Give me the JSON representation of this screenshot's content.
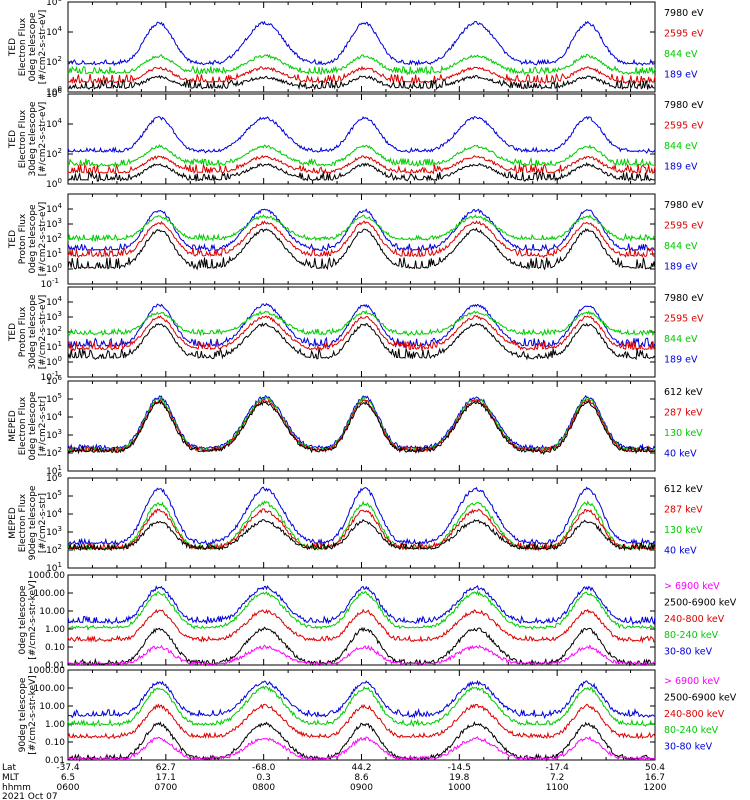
{
  "chart_data": [
    {
      "type": "line",
      "panel": "ted-electron-0deg",
      "ylabel": [
        "TED",
        "Electron Flux",
        "0deg telescope",
        "[#/cm2-s-str-eV]"
      ],
      "yscale": "log",
      "ylim": [
        1,
        1000000
      ],
      "yticks": [
        {
          "e": 0,
          "text": "10^0"
        },
        {
          "e": 2,
          "text": "10^2"
        },
        {
          "e": 4,
          "text": "10^4"
        },
        {
          "e": 6,
          "text": "10^6"
        }
      ],
      "series": [
        {
          "name": "7980 eV",
          "color": "#000000",
          "base": 0.2,
          "peak": 1.0,
          "noise": 0.6
        },
        {
          "name": "2595 eV",
          "color": "#dd0000",
          "base": 0.6,
          "peak": 1.6,
          "noise": 0.6
        },
        {
          "name": "844 eV",
          "color": "#00cc00",
          "base": 1.2,
          "peak": 2.4,
          "noise": 0.5
        },
        {
          "name": "189 eV",
          "color": "#0000dd",
          "base": 1.8,
          "peak": 4.6,
          "noise": 0.35
        }
      ]
    },
    {
      "type": "line",
      "panel": "ted-electron-30deg",
      "ylabel": [
        "TED",
        "Electron Flux",
        "30deg telescope",
        "[#/cm2-s-str-eV]"
      ],
      "yscale": "log",
      "ylim": [
        1,
        1000000
      ],
      "yticks": [
        {
          "e": 0,
          "text": "10^0"
        },
        {
          "e": 2,
          "text": "10^2"
        },
        {
          "e": 4,
          "text": "10^4"
        },
        {
          "e": 6,
          "text": "10^6"
        }
      ],
      "series": [
        {
          "name": "7980 eV",
          "color": "#000000",
          "base": 0.2,
          "peak": 1.3,
          "noise": 0.6
        },
        {
          "name": "2595 eV",
          "color": "#dd0000",
          "base": 0.7,
          "peak": 1.8,
          "noise": 0.6
        },
        {
          "name": "844 eV",
          "color": "#00cc00",
          "base": 1.2,
          "peak": 2.5,
          "noise": 0.5
        },
        {
          "name": "189 eV",
          "color": "#0000dd",
          "base": 2.1,
          "peak": 4.4,
          "noise": 0.3
        }
      ]
    },
    {
      "type": "line",
      "panel": "ted-proton-0deg",
      "ylabel": [
        "TED",
        "Proton Flux",
        "0deg telescope",
        "[#/cm2-s-str-eV]"
      ],
      "yscale": "log",
      "ylim": [
        0.1,
        100000
      ],
      "yticks": [
        {
          "e": -1,
          "text": "10^-1"
        },
        {
          "e": 0,
          "text": "10^0"
        },
        {
          "e": 1,
          "text": "10^1"
        },
        {
          "e": 2,
          "text": "10^2"
        },
        {
          "e": 3,
          "text": "10^3"
        },
        {
          "e": 4,
          "text": "10^4"
        }
      ],
      "series": [
        {
          "name": "7980 eV",
          "color": "#000000",
          "base": 0.0,
          "peak": 2.6,
          "noise": 0.8
        },
        {
          "name": "2595 eV",
          "color": "#dd0000",
          "base": 0.8,
          "peak": 3.1,
          "noise": 0.6
        },
        {
          "name": "844 eV",
          "color": "#00cc00",
          "base": 1.9,
          "peak": 3.5,
          "noise": 0.4
        },
        {
          "name": "189 eV",
          "color": "#0000dd",
          "base": 1.2,
          "peak": 3.9,
          "noise": 0.5
        }
      ]
    },
    {
      "type": "line",
      "panel": "ted-proton-30deg",
      "ylabel": [
        "TED",
        "Proton Flux",
        "30deg telescope",
        "[#/cm2-s-str-eV]"
      ],
      "yscale": "log",
      "ylim": [
        0.1,
        100000
      ],
      "yticks": [
        {
          "e": -1,
          "text": "10^-1"
        },
        {
          "e": 0,
          "text": "10^0"
        },
        {
          "e": 1,
          "text": "10^1"
        },
        {
          "e": 2,
          "text": "10^2"
        },
        {
          "e": 3,
          "text": "10^3"
        },
        {
          "e": 4,
          "text": "10^4"
        }
      ],
      "series": [
        {
          "name": "7980 eV",
          "color": "#000000",
          "base": 0.2,
          "peak": 2.5,
          "noise": 0.7
        },
        {
          "name": "2595 eV",
          "color": "#dd0000",
          "base": 0.8,
          "peak": 3.0,
          "noise": 0.6
        },
        {
          "name": "844 eV",
          "color": "#00cc00",
          "base": 1.8,
          "peak": 3.3,
          "noise": 0.4
        },
        {
          "name": "189 eV",
          "color": "#0000dd",
          "base": 1.0,
          "peak": 3.8,
          "noise": 0.6
        }
      ]
    },
    {
      "type": "line",
      "panel": "meped-electron-0deg",
      "ylabel": [
        "MEPED",
        "Electron Flux",
        "0deg telescope",
        "[#/cm2-s-str]"
      ],
      "yscale": "log",
      "ylim": [
        10,
        1000000
      ],
      "yticks": [
        {
          "e": 1,
          "text": "10^1"
        },
        {
          "e": 2,
          "text": "10^2"
        },
        {
          "e": 3,
          "text": "10^3"
        },
        {
          "e": 4,
          "text": "10^4"
        },
        {
          "e": 5,
          "text": "10^5"
        },
        {
          "e": 6,
          "text": "10^6"
        }
      ],
      "series": [
        {
          "name": "612 keV",
          "color": "#000000",
          "base": 2.0,
          "peak": 4.8,
          "noise": 0.35
        },
        {
          "name": "287 keV",
          "color": "#dd0000",
          "base": 2.05,
          "peak": 4.9,
          "noise": 0.3
        },
        {
          "name": "130 keV",
          "color": "#00cc00",
          "base": 2.1,
          "peak": 5.0,
          "noise": 0.2
        },
        {
          "name": "40 keV",
          "color": "#0000dd",
          "base": 2.2,
          "peak": 5.1,
          "noise": 0.25
        }
      ]
    },
    {
      "type": "line",
      "panel": "meped-electron-90deg",
      "ylabel": [
        "MEPED",
        "Electron Flux",
        "90deg telescope",
        "[#/cm2-s-str]"
      ],
      "yscale": "log",
      "ylim": [
        10,
        1000000
      ],
      "yticks": [
        {
          "e": 1,
          "text": "10^1"
        },
        {
          "e": 2,
          "text": "10^2"
        },
        {
          "e": 3,
          "text": "10^3"
        },
        {
          "e": 4,
          "text": "10^4"
        },
        {
          "e": 5,
          "text": "10^5"
        },
        {
          "e": 6,
          "text": "10^6"
        }
      ],
      "series": [
        {
          "name": "612 keV",
          "color": "#000000",
          "base": 2.0,
          "peak": 3.6,
          "noise": 0.4
        },
        {
          "name": "287 keV",
          "color": "#dd0000",
          "base": 2.0,
          "peak": 4.2,
          "noise": 0.4
        },
        {
          "name": "130 keV",
          "color": "#00cc00",
          "base": 2.0,
          "peak": 4.6,
          "noise": 0.3
        },
        {
          "name": "40 keV",
          "color": "#0000dd",
          "base": 2.3,
          "peak": 5.4,
          "noise": 0.3
        }
      ]
    },
    {
      "type": "line",
      "panel": "meped-proton-0deg",
      "ylabel": [
        "0deg telescope",
        "[#/cm2-s-str-keV]"
      ],
      "yscale": "log",
      "ylim": [
        0.01,
        1000
      ],
      "yticks": [
        {
          "e": -2,
          "text": "0.01"
        },
        {
          "e": -1,
          "text": "0.10"
        },
        {
          "e": 0,
          "text": "1.00"
        },
        {
          "e": 1,
          "text": "10.00"
        },
        {
          "e": 2,
          "text": "100.00"
        },
        {
          "e": 3,
          "text": "1000.00"
        }
      ],
      "series": [
        {
          "name": "> 6900 keV",
          "color": "#ff00ff",
          "base": -2.0,
          "peak": -1.0,
          "noise": 0.2
        },
        {
          "name": "2500-6900 keV",
          "color": "#000000",
          "base": -2.0,
          "peak": 0.0,
          "noise": 0.3
        },
        {
          "name": "240-800 keV",
          "color": "#dd0000",
          "base": -0.7,
          "peak": 1.0,
          "noise": 0.3
        },
        {
          "name": "80-240 keV",
          "color": "#00cc00",
          "base": 0.0,
          "peak": 2.0,
          "noise": 0.2
        },
        {
          "name": "30-80 keV",
          "color": "#0000dd",
          "base": 0.3,
          "peak": 2.3,
          "noise": 0.4
        }
      ]
    },
    {
      "type": "line",
      "panel": "meped-proton-90deg",
      "ylabel": [
        "90deg telescope",
        "[#/cm2-s-str-keV]"
      ],
      "yscale": "log",
      "ylim": [
        0.01,
        1000
      ],
      "yticks": [
        {
          "e": -2,
          "text": "0.01"
        },
        {
          "e": -1,
          "text": "0.10"
        },
        {
          "e": 0,
          "text": "1.00"
        },
        {
          "e": 1,
          "text": "10.00"
        },
        {
          "e": 2,
          "text": "100.00"
        },
        {
          "e": 3,
          "text": "1000.00"
        }
      ],
      "series": [
        {
          "name": "> 6900 keV",
          "color": "#ff00ff",
          "base": -2.0,
          "peak": -0.8,
          "noise": 0.2
        },
        {
          "name": "2500-6900 keV",
          "color": "#000000",
          "base": -2.0,
          "peak": 0.0,
          "noise": 0.3
        },
        {
          "name": "240-800 keV",
          "color": "#dd0000",
          "base": -0.8,
          "peak": 1.0,
          "noise": 0.3
        },
        {
          "name": "80-240 keV",
          "color": "#00cc00",
          "base": -0.1,
          "peak": 2.0,
          "noise": 0.3
        },
        {
          "name": "30-80 keV",
          "color": "#0000dd",
          "base": 0.4,
          "peak": 2.3,
          "noise": 0.4
        }
      ]
    }
  ],
  "x_axis": {
    "row_labels": [
      "Lat",
      "MLT",
      "hhmm"
    ],
    "ticks": [
      {
        "lat": "-37.4",
        "mlt": "6.5",
        "hhmm": "0600"
      },
      {
        "lat": "62.7",
        "mlt": "17.1",
        "hhmm": "0700"
      },
      {
        "lat": "-68.0",
        "mlt": "0.3",
        "hhmm": "0800"
      },
      {
        "lat": "44.2",
        "mlt": "8.6",
        "hhmm": "0900"
      },
      {
        "lat": "-14.5",
        "mlt": "19.8",
        "hhmm": "1000"
      },
      {
        "lat": "-17.4",
        "mlt": "7.2",
        "hhmm": "1100"
      },
      {
        "lat": "50.4",
        "mlt": "16.7",
        "hhmm": "1200"
      }
    ],
    "date": "2021 Oct 07"
  }
}
